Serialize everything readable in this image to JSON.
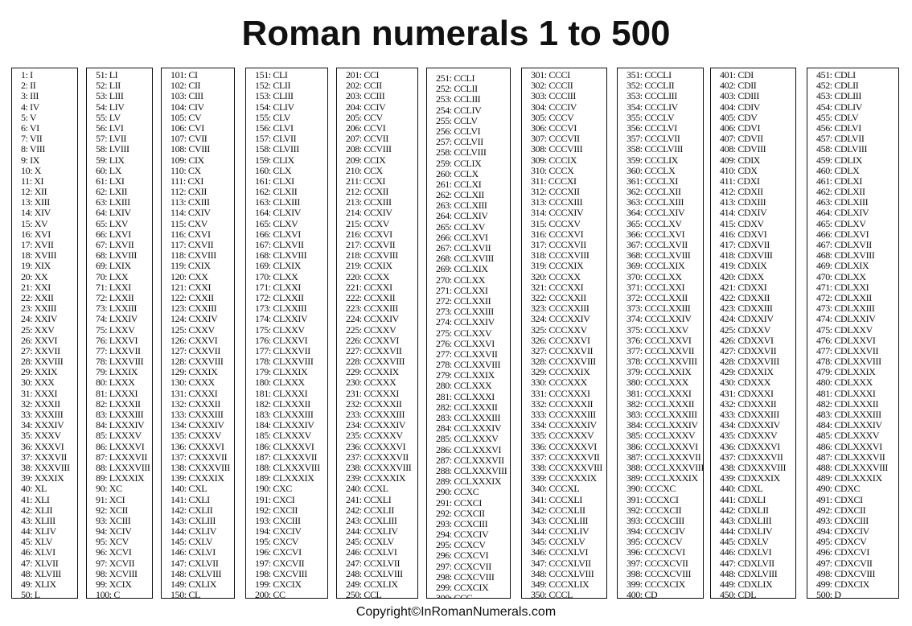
{
  "title": "Roman numerals 1 to 500",
  "footer": "Copyright©InRomanNumerals.com",
  "columns": [
    [
      "1: I",
      "2: II",
      "3: III",
      "4: IV",
      "5: V",
      "6: VI",
      "7: VII",
      "8: VIII",
      "9: IX",
      "10: X",
      "11: XI",
      "12: XII",
      "13: XIII",
      "14: XIV",
      "15: XV",
      "16: XVI",
      "17: XVII",
      "18: XVIII",
      "19: XIX",
      "20: XX",
      "21: XXI",
      "22: XXII",
      "23: XXIII",
      "24: XXIV",
      "25: XXV",
      "26: XXVI",
      "27: XXVII",
      "28: XXVIII",
      "29: XXIX",
      "30: XXX",
      "31: XXXI",
      "32: XXXII",
      "33: XXXIII",
      "34: XXXIV",
      "35: XXXV",
      "36: XXXVI",
      "37: XXXVII",
      "38: XXXVIII",
      "39: XXXIX",
      "40: XL",
      "41: XLI",
      "42: XLII",
      "43: XLIII",
      "44: XLIV",
      "45: XLV",
      "46: XLVI",
      "47: XLVII",
      "48: XLVIII",
      "49: XLIX",
      "50: L"
    ],
    [
      "51: LI",
      "52: LII",
      "53: LIII",
      "54: LIV",
      "55: LV",
      "56: LVI",
      "57: LVII",
      "58: LVIII",
      "59: LIX",
      "60: LX",
      "61: LXI",
      "62: LXII",
      "63: LXIII",
      "64: LXIV",
      "65: LXV",
      "66: LXVI",
      "67: LXVII",
      "68: LXVIII",
      "69: LXIX",
      "70: LXX",
      "71: LXXI",
      "72: LXXII",
      "73: LXXIII",
      "74: LXXIV",
      "75: LXXV",
      "76: LXXVI",
      "77: LXXVII",
      "78: LXXVIII",
      "79: LXXIX",
      "80: LXXX",
      "81: LXXXI",
      "82: LXXXII",
      "83: LXXXIII",
      "84: LXXXIV",
      "85: LXXXV",
      "86: LXXXVI",
      "87: LXXXVII",
      "88: LXXXVIII",
      "89: LXXXIX",
      "90: XC",
      "91: XCI",
      "92: XCII",
      "93: XCIII",
      "94: XCIV",
      "95: XCV",
      "96: XCVI",
      "97: XCVII",
      "98: XCVIII",
      "99: XCIX",
      "100: C"
    ],
    [
      "101: CI",
      "102: CII",
      "103: CIII",
      "104: CIV",
      "105: CV",
      "106: CVI",
      "107: CVII",
      "108: CVIII",
      "109: CIX",
      "110: CX",
      "111: CXI",
      "112: CXII",
      "113: CXIII",
      "114: CXIV",
      "115: CXV",
      "116: CXVI",
      "117: CXVII",
      "118: CXVIII",
      "119: CXIX",
      "120: CXX",
      "121: CXXI",
      "122: CXXII",
      "123: CXXIII",
      "124: CXXIV",
      "125: CXXV",
      "126: CXXVI",
      "127: CXXVII",
      "128: CXXVIII",
      "129: CXXIX",
      "130: CXXX",
      "131: CXXXI",
      "132: CXXXII",
      "133: CXXXIII",
      "134: CXXXIV",
      "135: CXXXV",
      "136: CXXXVI",
      "137: CXXXVII",
      "138: CXXXVIII",
      "139: CXXXIX",
      "140: CXL",
      "141: CXLI",
      "142: CXLII",
      "143: CXLIII",
      "144: CXLIV",
      "145: CXLV",
      "146: CXLVI",
      "147: CXLVII",
      "148: CXLVIII",
      "149: CXLIX",
      "150: CL"
    ],
    [
      "151: CLI",
      "152: CLII",
      "153: CLIII",
      "154: CLIV",
      "155: CLV",
      "156: CLVI",
      "157: CLVII",
      "158: CLVIII",
      "159: CLIX",
      "160: CLX",
      "161: CLXI",
      "162: CLXII",
      "163: CLXIII",
      "164: CLXIV",
      "165: CLXV",
      "166: CLXVI",
      "167: CLXVII",
      "168: CLXVIII",
      "169: CLXIX",
      "170: CLXX",
      "171: CLXXI",
      "172: CLXXII",
      "173: CLXXIII",
      "174: CLXXIV",
      "175: CLXXV",
      "176: CLXXVI",
      "177: CLXXVII",
      "178: CLXXVIII",
      "179: CLXXIX",
      "180: CLXXX",
      "181: CLXXXI",
      "182: CLXXXII",
      "183: CLXXXIII",
      "184: CLXXXIV",
      "185: CLXXXV",
      "186: CLXXXVI",
      "187: CLXXXVII",
      "188: CLXXXVIII",
      "189: CLXXXIX",
      "190: CXC",
      "191: CXCI",
      "192: CXCII",
      "193: CXCIII",
      "194: CXCIV",
      "195: CXCV",
      "196: CXCVI",
      "197: CXCVII",
      "198: CXCVIII",
      "199: CXCIX",
      "200: CC"
    ],
    [
      "201: CCI",
      "202: CCII",
      "203: CCIII",
      "204: CCIV",
      "205: CCV",
      "206: CCVI",
      "207: CCVII",
      "208: CCVIII",
      "209: CCIX",
      "210: CCX",
      "211: CCXI",
      "212: CCXII",
      "213: CCXIII",
      "214: CCXIV",
      "215: CCXV",
      "216: CCXVI",
      "217: CCXVII",
      "218: CCXVIII",
      "219: CCXIX",
      "220: CCXX",
      "221: CCXXI",
      "222: CCXXII",
      "223: CCXXIII",
      "224: CCXXIV",
      "225: CCXXV",
      "226: CCXXVI",
      "227: CCXXVII",
      "228: CCXXVIII",
      "229: CCXXIX",
      "230: CCXXX",
      "231: CCXXXI",
      "232: CCXXXII",
      "233: CCXXXIII",
      "234: CCXXXIV",
      "235: CCXXXV",
      "236: CCXXXVI",
      "237: CCXXXVII",
      "238: CCXXXVIII",
      "239: CCXXXIX",
      "240: CCXL",
      "241: CCXLI",
      "242: CCXLII",
      "243: CCXLIII",
      "244: CCXLIV",
      "245: CCXLV",
      "246: CCXLVI",
      "247: CCXLVII",
      "248: CCXLVIII",
      "249: CCXLIX",
      "250: CCL"
    ],
    [
      "251: CCLI",
      "252: CCLII",
      "253: CCLIII",
      "254: CCLIV",
      "255: CCLV",
      "256: CCLVI",
      "257: CCLVII",
      "258: CCLVIII",
      "259: CCLIX",
      "260: CCLX",
      "261: CCLXI",
      "262: CCLXII",
      "263: CCLXIII",
      "264: CCLXIV",
      "265: CCLXV",
      "266: CCLXVI",
      "267: CCLXVII",
      "268: CCLXVIII",
      "269: CCLXIX",
      "270: CCLXX",
      "271: CCLXXI",
      "272: CCLXXII",
      "273: CCLXXIII",
      "274: CCLXXIV",
      "275: CCLXXV",
      "276: CCLXXVI",
      "277: CCLXXVII",
      "278: CCLXXVIII",
      "279: CCLXXIX",
      "280: CCLXXX",
      "281: CCLXXXI",
      "282: CCLXXXII",
      "283: CCLXXXIII",
      "284: CCLXXXIV",
      "285: CCLXXXV",
      "286: CCLXXXVI",
      "287: CCLXXXVII",
      "288: CCLXXXVIII",
      "289: CCLXXXIX",
      "290: CCXC",
      "291: CCXCI",
      "292: CCXCII",
      "293: CCXCIII",
      "294: CCXCIV",
      "295: CCXCV",
      "296: CCXCVI",
      "297: CCXCVII",
      "298: CCXCVIII",
      "299: CCXCIX",
      "300: CCC"
    ],
    [
      "301: CCCI",
      "302: CCCII",
      "303: CCCIII",
      "304: CCCIV",
      "305: CCCV",
      "306: CCCVI",
      "307: CCCVII",
      "308: CCCVIII",
      "309: CCCIX",
      "310: CCCX",
      "311: CCCXI",
      "312: CCCXII",
      "313: CCCXIII",
      "314: CCCXIV",
      "315: CCCXV",
      "316: CCCXVI",
      "317: CCCXVII",
      "318: CCCXVIII",
      "319: CCCXIX",
      "320: CCCXX",
      "321: CCCXXI",
      "322: CCCXXII",
      "323: CCCXXIII",
      "324: CCCXXIV",
      "325: CCCXXV",
      "326: CCCXXVI",
      "327: CCCXXVII",
      "328: CCCXXVIII",
      "329: CCCXXIX",
      "330: CCCXXX",
      "331: CCCXXXI",
      "332: CCCXXXII",
      "333: CCCXXXIII",
      "334: CCCXXXIV",
      "335: CCCXXXV",
      "336: CCCXXXVI",
      "337: CCCXXXVII",
      "338: CCCXXXVIII",
      "339: CCCXXXIX",
      "340: CCCXL",
      "341: CCCXLI",
      "342: CCCXLII",
      "343: CCCXLIII",
      "344: CCCXLIV",
      "345: CCCXLV",
      "346: CCCXLVI",
      "347: CCCXLVII",
      "348: CCCXLVIII",
      "349: CCCXLIX",
      "350: CCCL"
    ],
    [
      "351: CCCLI",
      "352: CCCLII",
      "353: CCCLIII",
      "354: CCCLIV",
      "355: CCCLV",
      "356: CCCLVI",
      "357: CCCLVII",
      "358: CCCLVIII",
      "359: CCCLIX",
      "360: CCCLX",
      "361: CCCLXI",
      "362: CCCLXII",
      "363: CCCLXIII",
      "364: CCCLXIV",
      "365: CCCLXV",
      "366: CCCLXVI",
      "367: CCCLXVII",
      "368: CCCLXVIII",
      "369: CCCLXIX",
      "370: CCCLXX",
      "371: CCCLXXI",
      "372: CCCLXXII",
      "373: CCCLXXIII",
      "374: CCCLXXIV",
      "375: CCCLXXV",
      "376: CCCLXXVI",
      "377: CCCLXXVII",
      "378: CCCLXXVIII",
      "379: CCCLXXIX",
      "380: CCCLXXX",
      "381: CCCLXXXI",
      "382: CCCLXXXII",
      "383: CCCLXXXIII",
      "384: CCCLXXXIV",
      "385: CCCLXXXV",
      "386: CCCLXXXVI",
      "387: CCCLXXXVII",
      "388: CCCLXXXVIII",
      "389: CCCLXXXIX",
      "390: CCCXC",
      "391: CCCXCI",
      "392: CCCXCII",
      "393: CCCXCIII",
      "394: CCCXCIV",
      "395: CCCXCV",
      "396: CCCXCVI",
      "397: CCCXCVII",
      "398: CCCXCVIII",
      "399: CCCXCIX",
      "400: CD"
    ],
    [
      "401: CDI",
      "402: CDII",
      "403: CDIII",
      "404: CDIV",
      "405: CDV",
      "406: CDVI",
      "407: CDVII",
      "408: CDVIII",
      "409: CDIX",
      "410: CDX",
      "411: CDXI",
      "412: CDXII",
      "413: CDXIII",
      "414: CDXIV",
      "415: CDXV",
      "416: CDXVI",
      "417: CDXVII",
      "418: CDXVIII",
      "419: CDXIX",
      "420: CDXX",
      "421: CDXXI",
      "422: CDXXII",
      "423: CDXXIII",
      "424: CDXXIV",
      "425: CDXXV",
      "426: CDXXVI",
      "427: CDXXVII",
      "428: CDXXVIII",
      "429: CDXXIX",
      "430: CDXXX",
      "431: CDXXXI",
      "432: CDXXXII",
      "433: CDXXXIII",
      "434: CDXXXIV",
      "435: CDXXXV",
      "436: CDXXXVI",
      "437: CDXXXVII",
      "438: CDXXXVIII",
      "439: CDXXXIX",
      "440: CDXL",
      "441: CDXLI",
      "442: CDXLII",
      "443: CDXLIII",
      "444: CDXLIV",
      "445: CDXLV",
      "446: CDXLVI",
      "447: CDXLVII",
      "448: CDXLVIII",
      "449: CDXLIX",
      "450: CDL"
    ],
    [
      "451: CDLI",
      "452: CDLII",
      "453: CDLIII",
      "454: CDLIV",
      "455: CDLV",
      "456: CDLVI",
      "457: CDLVII",
      "458: CDLVIII",
      "459: CDLIX",
      "460: CDLX",
      "461: CDLXI",
      "462: CDLXII",
      "463: CDLXIII",
      "464: CDLXIV",
      "465: CDLXV",
      "466: CDLXVI",
      "467: CDLXVII",
      "468: CDLXVIII",
      "469: CDLXIX",
      "470: CDLXX",
      "471: CDLXXI",
      "472: CDLXXII",
      "473: CDLXXIII",
      "474: CDLXXIV",
      "475: CDLXXV",
      "476: CDLXXVI",
      "477: CDLXXVII",
      "478: CDLXXVIII",
      "479: CDLXXIX",
      "480: CDLXXX",
      "481: CDLXXXI",
      "482: CDLXXXII",
      "483: CDLXXXIII",
      "484: CDLXXXIV",
      "485: CDLXXXV",
      "486: CDLXXXVI",
      "487: CDLXXXVII",
      "488: CDLXXXVIII",
      "489: CDLXXXIX",
      "490: CDXC",
      "491: CDXCI",
      "492: CDXCII",
      "493: CDXCIII",
      "494: CDXCIV",
      "495: CDXCV",
      "496: CDXCVI",
      "497: CDXCVII",
      "498: CDXCVIII",
      "499: CDXCIX",
      "500: D"
    ]
  ]
}
